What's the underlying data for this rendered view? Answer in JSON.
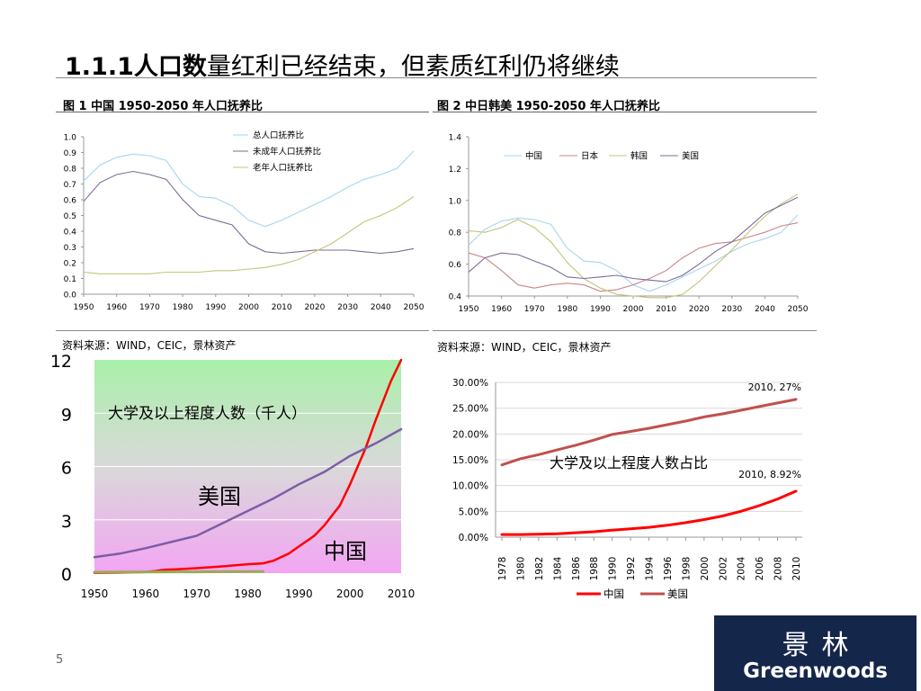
{
  "page": {
    "title_bold": "1.1.1人口数",
    "title_rest": "量红利已经结束，但素质红利仍将继续",
    "page_number": "5"
  },
  "fig1": {
    "caption": "图 1    中国 1950-2050 年人口抚养比",
    "source": "资料来源：WIND，CEIC，景林资产"
  },
  "fig2": {
    "caption": "图 2    中日韩美 1950-2050 年人口抚养比",
    "source": "资料来源：WIND，CEIC，景林资产"
  },
  "logo": {
    "cn": "景林",
    "en": "Greenwoods"
  },
  "colors": {
    "light_blue": "#a5d6ef",
    "purple": "#7e6b95",
    "olive": "#c4c47a",
    "pink": "#c98585",
    "red": "#ff0000",
    "purple_line": "#7d5da6",
    "dark_red": "#c0504d",
    "navy": "#15264b"
  },
  "chart_data": [
    {
      "id": "chart1",
      "type": "line",
      "xlabel": "",
      "ylabel": "",
      "x": [
        1950,
        1955,
        1960,
        1965,
        1970,
        1975,
        1980,
        1985,
        1990,
        1995,
        2000,
        2005,
        2010,
        2015,
        2020,
        2025,
        2030,
        2035,
        2040,
        2045,
        2050
      ],
      "xticks": [
        "1950",
        "1960",
        "1970",
        "1980",
        "1990",
        "2000",
        "2010",
        "2020",
        "2030",
        "2040",
        "2050"
      ],
      "yticks": [
        "0.0",
        "0.1",
        "0.2",
        "0.3",
        "0.4",
        "0.5",
        "0.6",
        "0.7",
        "0.8",
        "0.9",
        "1.0"
      ],
      "ylim": [
        0,
        1.0
      ],
      "legend_position": "top-center",
      "series": [
        {
          "name": "总人口抚养比",
          "color": "#a5d6ef",
          "values": [
            0.72,
            0.82,
            0.87,
            0.89,
            0.88,
            0.85,
            0.7,
            0.62,
            0.61,
            0.56,
            0.47,
            0.43,
            0.47,
            0.52,
            0.57,
            0.62,
            0.68,
            0.73,
            0.76,
            0.8,
            0.91
          ]
        },
        {
          "name": "未成年人口抚养比",
          "color": "#7e6b95",
          "values": [
            0.59,
            0.71,
            0.76,
            0.78,
            0.76,
            0.73,
            0.6,
            0.5,
            0.47,
            0.44,
            0.32,
            0.27,
            0.26,
            0.27,
            0.28,
            0.28,
            0.28,
            0.27,
            0.26,
            0.27,
            0.29
          ]
        },
        {
          "name": "老年人口抚养比",
          "color": "#c4c47a",
          "values": [
            0.14,
            0.13,
            0.13,
            0.13,
            0.13,
            0.14,
            0.14,
            0.14,
            0.15,
            0.15,
            0.16,
            0.17,
            0.19,
            0.22,
            0.27,
            0.32,
            0.39,
            0.46,
            0.5,
            0.55,
            0.62
          ]
        }
      ]
    },
    {
      "id": "chart2",
      "type": "line",
      "xlabel": "",
      "ylabel": "",
      "x": [
        1950,
        1955,
        1960,
        1965,
        1970,
        1975,
        1980,
        1985,
        1990,
        1995,
        2000,
        2005,
        2010,
        2015,
        2020,
        2025,
        2030,
        2035,
        2040,
        2045,
        2050
      ],
      "xticks": [
        "1950",
        "1960",
        "1970",
        "1980",
        "1990",
        "2000",
        "2010",
        "2020",
        "2030",
        "2040",
        "2050"
      ],
      "yticks": [
        "0.4",
        "0.6",
        "0.8",
        "1.0",
        "1.2",
        "1.4"
      ],
      "ylim": [
        0.4,
        1.4
      ],
      "legend_position": "top-center",
      "series": [
        {
          "name": "中国",
          "color": "#a5d6ef",
          "values": [
            0.72,
            0.82,
            0.87,
            0.89,
            0.88,
            0.85,
            0.7,
            0.62,
            0.61,
            0.56,
            0.47,
            0.43,
            0.47,
            0.52,
            0.57,
            0.62,
            0.68,
            0.73,
            0.76,
            0.8,
            0.91
          ]
        },
        {
          "name": "日本",
          "color": "#c98585",
          "values": [
            0.67,
            0.64,
            0.56,
            0.47,
            0.45,
            0.47,
            0.48,
            0.47,
            0.43,
            0.44,
            0.47,
            0.51,
            0.56,
            0.64,
            0.7,
            0.73,
            0.74,
            0.77,
            0.8,
            0.84,
            0.86
          ]
        },
        {
          "name": "韩国",
          "color": "#c4c47a",
          "values": [
            0.81,
            0.8,
            0.83,
            0.88,
            0.83,
            0.74,
            0.61,
            0.51,
            0.45,
            0.41,
            0.4,
            0.39,
            0.39,
            0.41,
            0.49,
            0.59,
            0.69,
            0.8,
            0.9,
            0.98,
            1.04
          ]
        },
        {
          "name": "美国",
          "color": "#7e6b95",
          "values": [
            0.55,
            0.64,
            0.67,
            0.66,
            0.62,
            0.58,
            0.52,
            0.51,
            0.52,
            0.53,
            0.51,
            0.5,
            0.49,
            0.53,
            0.6,
            0.68,
            0.74,
            0.83,
            0.92,
            0.97,
            1.02
          ]
        }
      ]
    },
    {
      "id": "chart3",
      "type": "line",
      "xlabel": "",
      "ylabel": "",
      "annotation": "大学及以上程度人数（千人）",
      "x": [
        1950,
        1955,
        1960,
        1965,
        1970,
        1975,
        1980,
        1983,
        1985,
        1990,
        1995,
        2000,
        2005,
        2010
      ],
      "xticks": [
        "1950",
        "1960",
        "1970",
        "1980",
        "1990",
        "2000",
        "2010"
      ],
      "yticks": [
        "0",
        "3",
        "6",
        "9",
        "12"
      ],
      "ylim": [
        0,
        12
      ],
      "series": [
        {
          "name": "中国",
          "color": "#ff0000",
          "x": [
            1950,
            1955,
            1960,
            1962,
            1964,
            1966,
            1970,
            1975,
            1980,
            1983,
            1985,
            1988,
            1990,
            1993,
            1995,
            1998,
            2000,
            2003,
            2005,
            2008,
            2010
          ],
          "values": [
            0.01,
            0.03,
            0.06,
            0.12,
            0.2,
            0.22,
            0.28,
            0.38,
            0.5,
            0.55,
            0.7,
            1.1,
            1.5,
            2.1,
            2.7,
            3.8,
            5.0,
            7.0,
            8.6,
            10.8,
            12.0
          ]
        },
        {
          "name": "美国",
          "color": "#7d5da6",
          "x": [
            1950,
            1955,
            1960,
            1965,
            1970,
            1975,
            1980,
            1985,
            1990,
            1995,
            2000,
            2005,
            2010
          ],
          "values": [
            0.9,
            1.1,
            1.4,
            1.75,
            2.1,
            2.8,
            3.5,
            4.2,
            5.0,
            5.7,
            6.6,
            7.3,
            8.1
          ]
        },
        {
          "name": "",
          "color": "#9aaa55",
          "x": [
            1950,
            1955,
            1960,
            1965,
            1970,
            1975,
            1980,
            1983
          ],
          "values": [
            0.05,
            0.06,
            0.06,
            0.07,
            0.07,
            0.08,
            0.09,
            0.09
          ]
        }
      ]
    },
    {
      "id": "chart4",
      "type": "line",
      "annotation": "大学及以上程度人数占比",
      "x": [
        1978,
        1980,
        1982,
        1984,
        1986,
        1988,
        1990,
        1992,
        1994,
        1996,
        1998,
        2000,
        2002,
        2004,
        2006,
        2008,
        2010
      ],
      "xticks": [
        "1978",
        "1980",
        "1982",
        "1984",
        "1986",
        "1988",
        "1990",
        "1992",
        "1994",
        "1996",
        "1998",
        "2000",
        "2002",
        "2004",
        "2006",
        "2008",
        "2010"
      ],
      "yticks": [
        "0.00%",
        "5.00%",
        "10.00%",
        "15.00%",
        "20.00%",
        "25.00%",
        "30.00%"
      ],
      "ylim": [
        0,
        30
      ],
      "legend_position": "bottom",
      "data_labels": [
        "2010, 27%",
        "2010, 8.92%"
      ],
      "series": [
        {
          "name": "中国",
          "color": "#ff0000",
          "values": [
            0.5,
            0.5,
            0.55,
            0.65,
            0.85,
            1.05,
            1.35,
            1.6,
            1.9,
            2.3,
            2.8,
            3.4,
            4.1,
            5.0,
            6.1,
            7.4,
            8.92
          ]
        },
        {
          "name": "美国",
          "color": "#c0504d",
          "values": [
            14.0,
            15.2,
            16.0,
            16.9,
            17.8,
            18.8,
            19.9,
            20.5,
            21.1,
            21.8,
            22.5,
            23.3,
            23.9,
            24.6,
            25.3,
            26.0,
            26.7
          ]
        }
      ]
    }
  ]
}
